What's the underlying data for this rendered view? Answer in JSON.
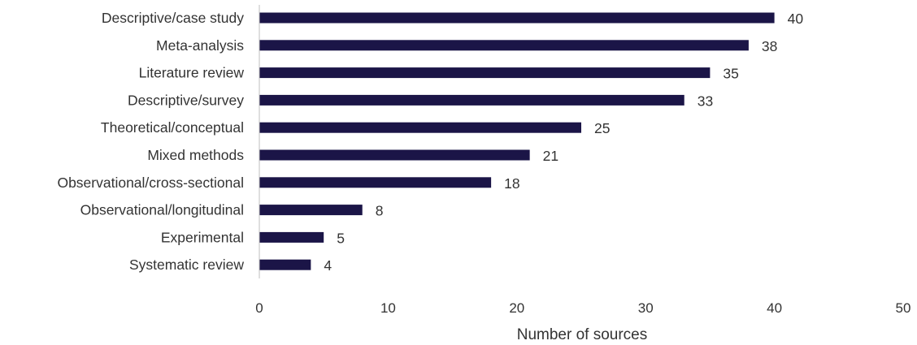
{
  "chart_data": {
    "type": "bar",
    "orientation": "horizontal",
    "categories": [
      "Descriptive/case study",
      "Meta-analysis",
      "Literature review",
      "Descriptive/survey",
      "Theoretical/conceptual",
      "Mixed methods",
      "Observational/cross-sectional",
      "Observational/longitudinal",
      "Experimental",
      "Systematic review"
    ],
    "values": [
      40,
      38,
      35,
      33,
      25,
      21,
      18,
      8,
      5,
      4
    ],
    "xlabel": "Number of sources",
    "ylabel": "",
    "xlim": [
      0,
      50
    ],
    "xticks": [
      0,
      10,
      20,
      30,
      40,
      50
    ],
    "bar_color": "#1b1547",
    "axis_color": "#bfbfbf",
    "grid": false,
    "data_labels": true
  }
}
